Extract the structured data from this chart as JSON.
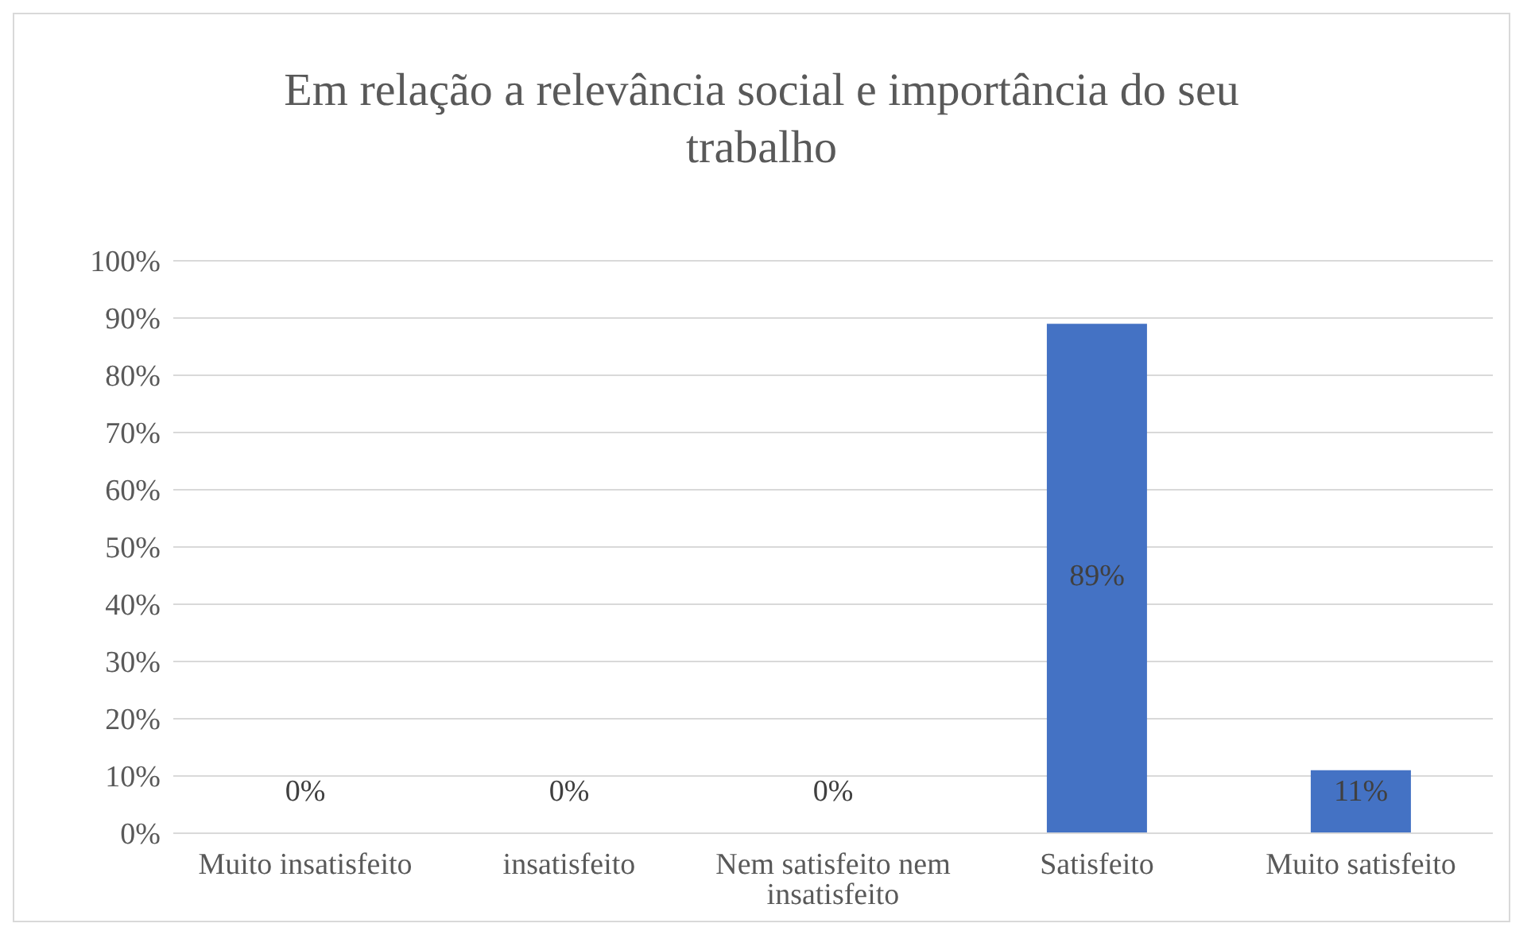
{
  "chart_data": {
    "type": "bar",
    "title": "Em relação a relevância social e importância do seu trabalho",
    "categories": [
      "Muito insatisfeito",
      "insatisfeito",
      "Nem satisfeito nem insatisfeito",
      "Satisfeito",
      "Muito satisfeito"
    ],
    "values": [
      0,
      0,
      0,
      89,
      11
    ],
    "value_labels": [
      "0%",
      "0%",
      "0%",
      "89%",
      "11%"
    ],
    "color": "#4472c4",
    "ylim": [
      0,
      100
    ],
    "yticks": [
      {
        "value": 0,
        "label": "0%"
      },
      {
        "value": 10,
        "label": "10%"
      },
      {
        "value": 20,
        "label": "20%"
      },
      {
        "value": 30,
        "label": "30%"
      },
      {
        "value": 40,
        "label": "40%"
      },
      {
        "value": 50,
        "label": "50%"
      },
      {
        "value": 60,
        "label": "60%"
      },
      {
        "value": 70,
        "label": "70%"
      },
      {
        "value": 80,
        "label": "80%"
      },
      {
        "value": 90,
        "label": "90%"
      },
      {
        "value": 100,
        "label": "100%"
      }
    ],
    "grid": "y",
    "legend": false
  }
}
